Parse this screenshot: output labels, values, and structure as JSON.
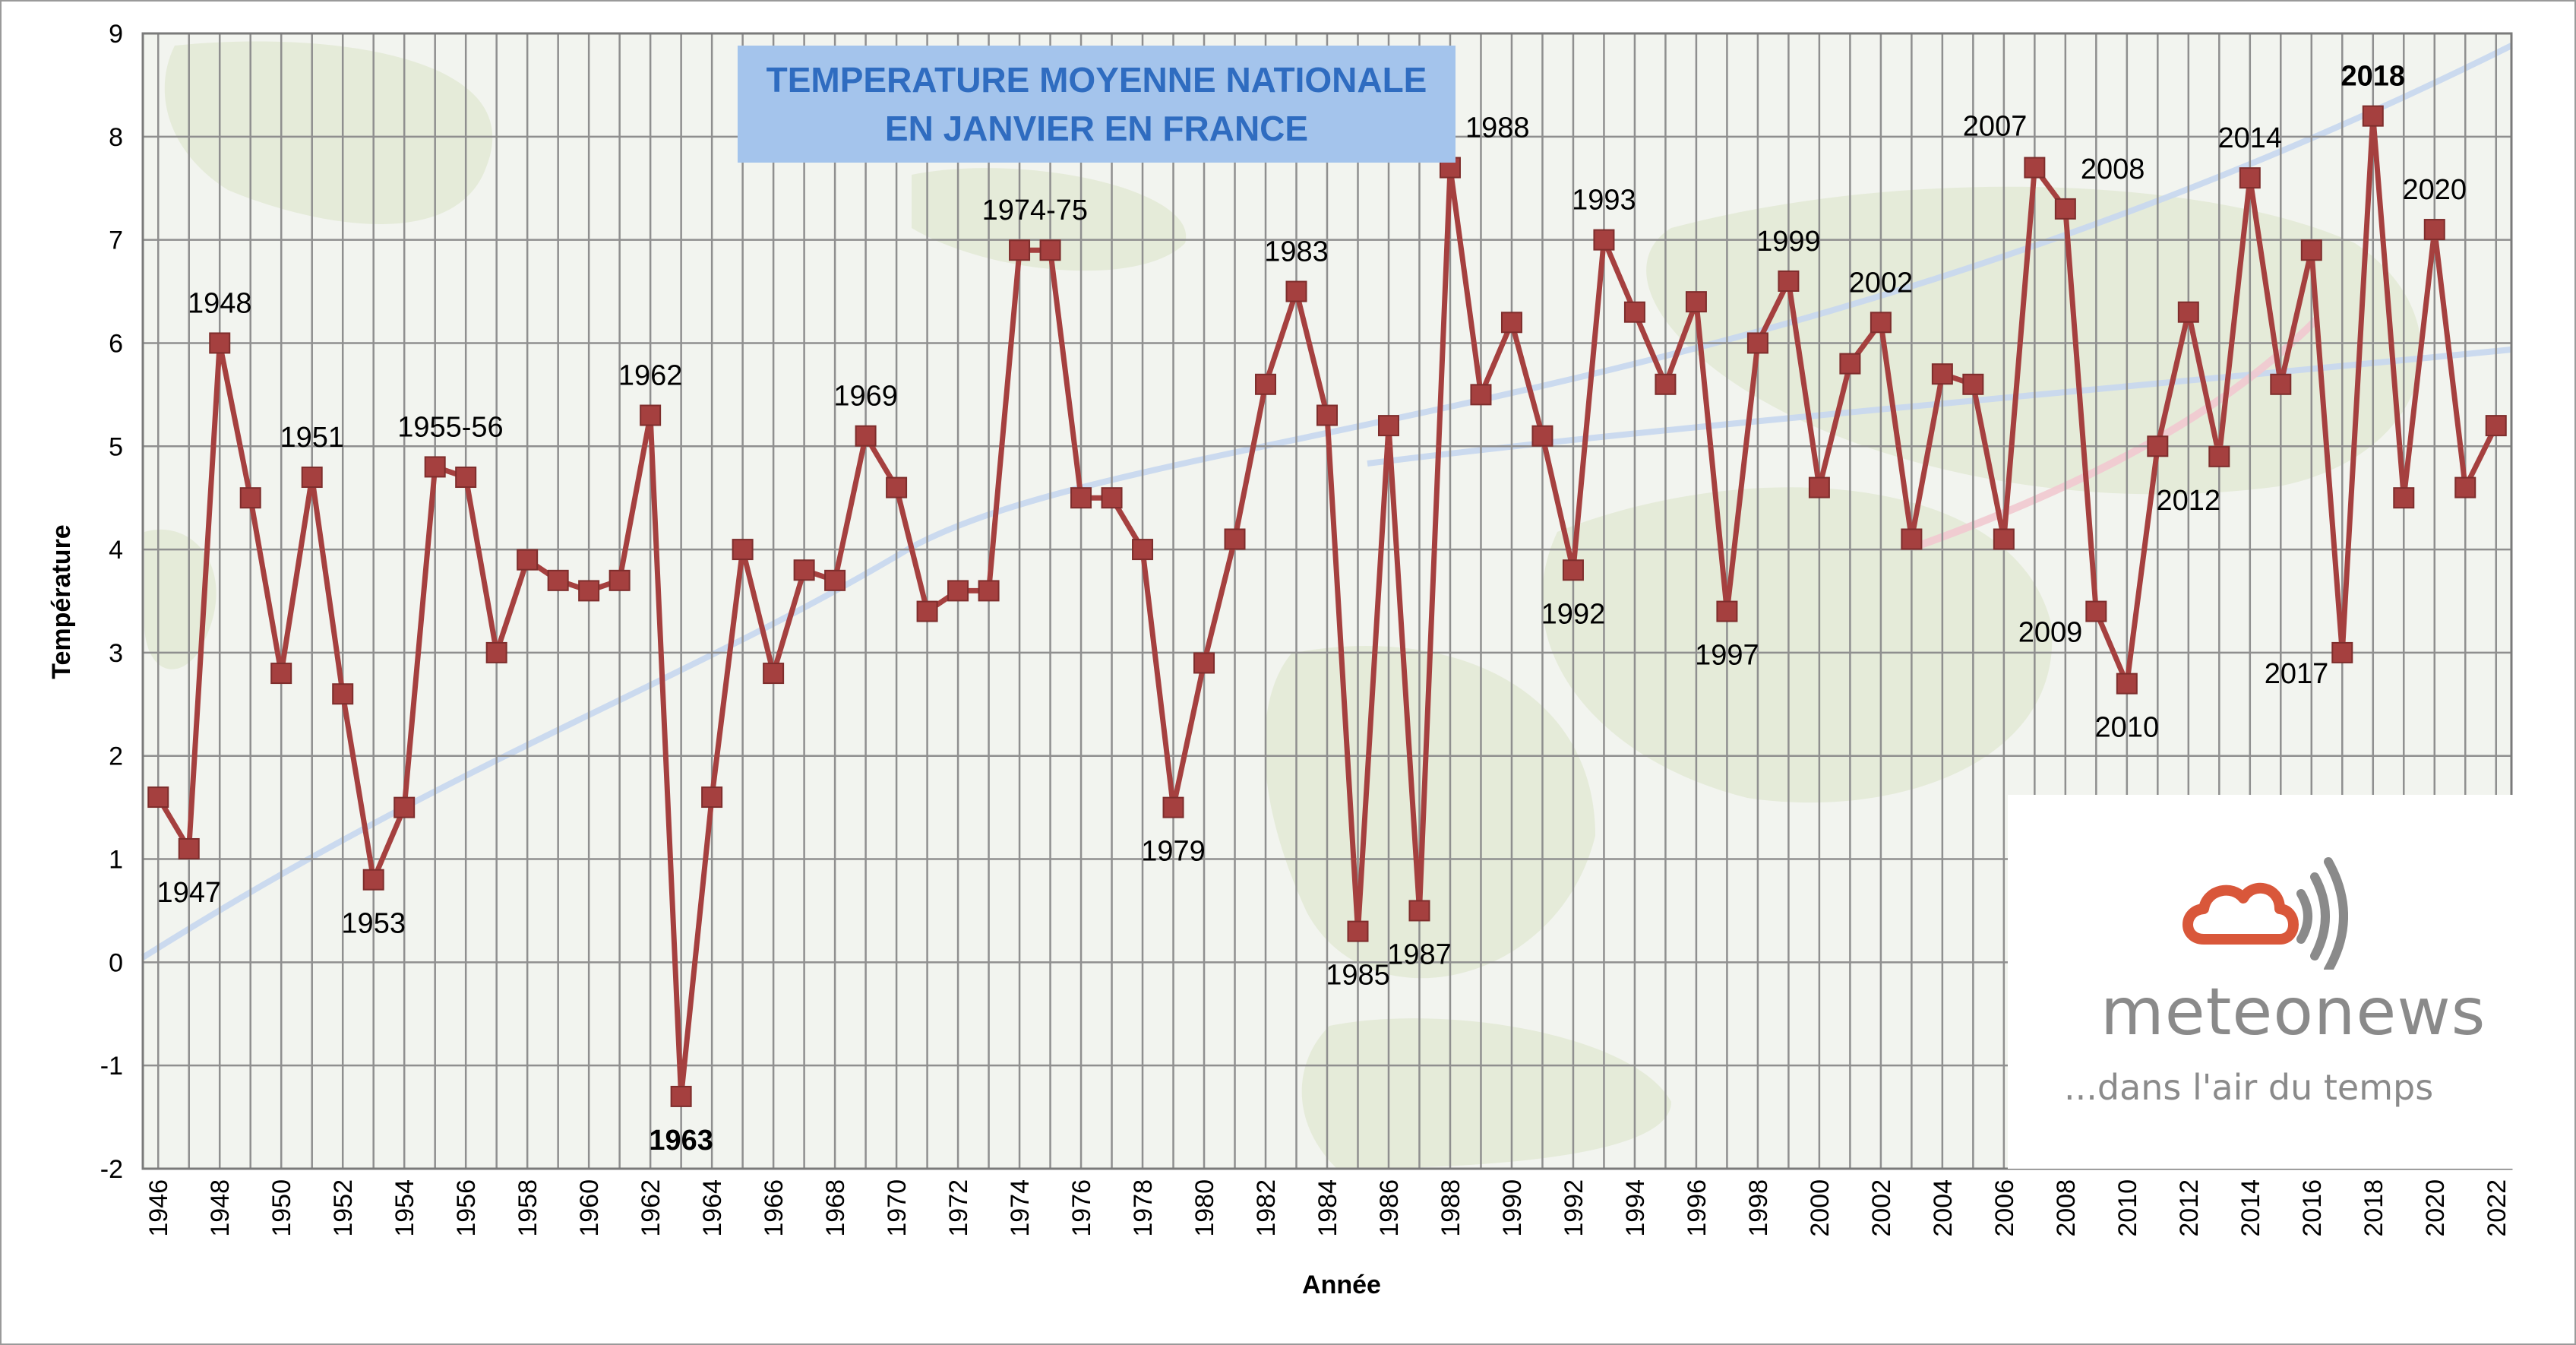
{
  "chart_data": {
    "type": "line",
    "title_lines": [
      "TEMPERATURE MOYENNE NATIONALE",
      "EN JANVIER EN FRANCE"
    ],
    "xlabel": "Année",
    "ylabel": "Température",
    "xlim": [
      1945.5,
      2022.5
    ],
    "ylim": [
      -2,
      9
    ],
    "yticks": [
      -2,
      -1,
      0,
      1,
      2,
      3,
      4,
      5,
      6,
      7,
      8,
      9
    ],
    "xtick_labels": [
      "1946",
      "1948",
      "1950",
      "1952",
      "1954",
      "1956",
      "1958",
      "1960",
      "1962",
      "1964",
      "1966",
      "1968",
      "1970",
      "1972",
      "1974",
      "1976",
      "1978",
      "1980",
      "1982",
      "1984",
      "1986",
      "1988",
      "1990",
      "1992",
      "1994",
      "1996",
      "1998",
      "2000",
      "2002",
      "2004",
      "2006",
      "2008",
      "2010",
      "2012",
      "2014",
      "2016",
      "2018",
      "2020",
      "2022"
    ],
    "grid": true,
    "series_color": "#a5403f",
    "x": [
      1946,
      1947,
      1948,
      1949,
      1950,
      1951,
      1952,
      1953,
      1954,
      1955,
      1956,
      1957,
      1958,
      1959,
      1960,
      1961,
      1962,
      1963,
      1964,
      1965,
      1966,
      1967,
      1968,
      1969,
      1970,
      1971,
      1972,
      1973,
      1974,
      1975,
      1976,
      1977,
      1978,
      1979,
      1980,
      1981,
      1982,
      1983,
      1984,
      1985,
      1986,
      1987,
      1988,
      1989,
      1990,
      1991,
      1992,
      1993,
      1994,
      1995,
      1996,
      1997,
      1998,
      1999,
      2000,
      2001,
      2002,
      2003,
      2004,
      2005,
      2006,
      2007,
      2008,
      2009,
      2010,
      2011,
      2012,
      2013,
      2014,
      2015,
      2016,
      2017,
      2018,
      2019,
      2020,
      2021,
      2022
    ],
    "values": [
      1.6,
      1.1,
      6.0,
      4.5,
      2.8,
      4.7,
      2.6,
      0.8,
      1.5,
      4.8,
      4.7,
      3.0,
      3.9,
      3.7,
      3.6,
      3.7,
      5.3,
      -1.3,
      1.6,
      4.0,
      2.8,
      3.8,
      3.7,
      5.1,
      4.6,
      3.4,
      3.6,
      3.6,
      6.9,
      6.9,
      4.5,
      4.5,
      4.0,
      1.5,
      2.9,
      4.1,
      5.6,
      6.5,
      5.3,
      0.3,
      5.2,
      0.5,
      7.7,
      5.5,
      6.2,
      5.1,
      3.8,
      7.0,
      6.3,
      5.6,
      6.4,
      3.4,
      6.0,
      6.6,
      4.6,
      5.8,
      6.2,
      4.1,
      5.7,
      5.6,
      4.1,
      7.7,
      7.3,
      3.4,
      2.7,
      5.0,
      6.3,
      4.9,
      7.6,
      5.6,
      6.9,
      3.0,
      8.2,
      4.5,
      7.1,
      4.6,
      5.2
    ],
    "annotations": [
      {
        "text": "1947",
        "x": 1947,
        "y": 1.1,
        "pos": "below"
      },
      {
        "text": "1948",
        "x": 1948,
        "y": 6.0,
        "pos": "above"
      },
      {
        "text": "1951",
        "x": 1951,
        "y": 4.7,
        "pos": "above"
      },
      {
        "text": "1953",
        "x": 1953,
        "y": 0.8,
        "pos": "below"
      },
      {
        "text": "1955-56",
        "x": 1955.5,
        "y": 4.8,
        "pos": "above"
      },
      {
        "text": "1962",
        "x": 1962,
        "y": 5.3,
        "pos": "above"
      },
      {
        "text": "1963",
        "x": 1963,
        "y": -1.3,
        "pos": "below",
        "color": "#1f3de8",
        "bold": true
      },
      {
        "text": "1969",
        "x": 1969,
        "y": 5.1,
        "pos": "above"
      },
      {
        "text": "1974-75",
        "x": 1974.5,
        "y": 6.9,
        "pos": "above"
      },
      {
        "text": "1979",
        "x": 1979,
        "y": 1.5,
        "pos": "below"
      },
      {
        "text": "1983",
        "x": 1983,
        "y": 6.5,
        "pos": "above"
      },
      {
        "text": "1985",
        "x": 1985,
        "y": 0.3,
        "pos": "below"
      },
      {
        "text": "1987",
        "x": 1987,
        "y": 0.5,
        "pos": "below"
      },
      {
        "text": "1988",
        "x": 1988,
        "y": 7.7,
        "pos": "above-right"
      },
      {
        "text": "1992",
        "x": 1992,
        "y": 3.8,
        "pos": "below"
      },
      {
        "text": "1993",
        "x": 1993,
        "y": 7.0,
        "pos": "above"
      },
      {
        "text": "1997",
        "x": 1997,
        "y": 3.4,
        "pos": "below"
      },
      {
        "text": "1999",
        "x": 1999,
        "y": 6.6,
        "pos": "above"
      },
      {
        "text": "2002",
        "x": 2002,
        "y": 6.2,
        "pos": "above"
      },
      {
        "text": "2007",
        "x": 2007,
        "y": 7.7,
        "pos": "above-left"
      },
      {
        "text": "2008",
        "x": 2008,
        "y": 7.3,
        "pos": "above-right"
      },
      {
        "text": "2009",
        "x": 2009,
        "y": 3.4,
        "pos": "below-left"
      },
      {
        "text": "2010",
        "x": 2010,
        "y": 2.7,
        "pos": "below"
      },
      {
        "text": "2012",
        "x": 2012,
        "y": 4.9,
        "pos": "below"
      },
      {
        "text": "2014",
        "x": 2014,
        "y": 7.6,
        "pos": "above"
      },
      {
        "text": "2017",
        "x": 2017,
        "y": 3.0,
        "pos": "below-left"
      },
      {
        "text": "2018",
        "x": 2018,
        "y": 8.2,
        "pos": "above",
        "color": "#d0121b",
        "bold": true
      },
      {
        "text": "2020",
        "x": 2020,
        "y": 7.1,
        "pos": "above"
      }
    ]
  },
  "logo": {
    "name": "meteonews",
    "tagline": "...dans l'air du temps",
    "icon": "cloud-signal-icon",
    "cloud_color": "#d9573a",
    "text_color": "#8a8a8a"
  }
}
